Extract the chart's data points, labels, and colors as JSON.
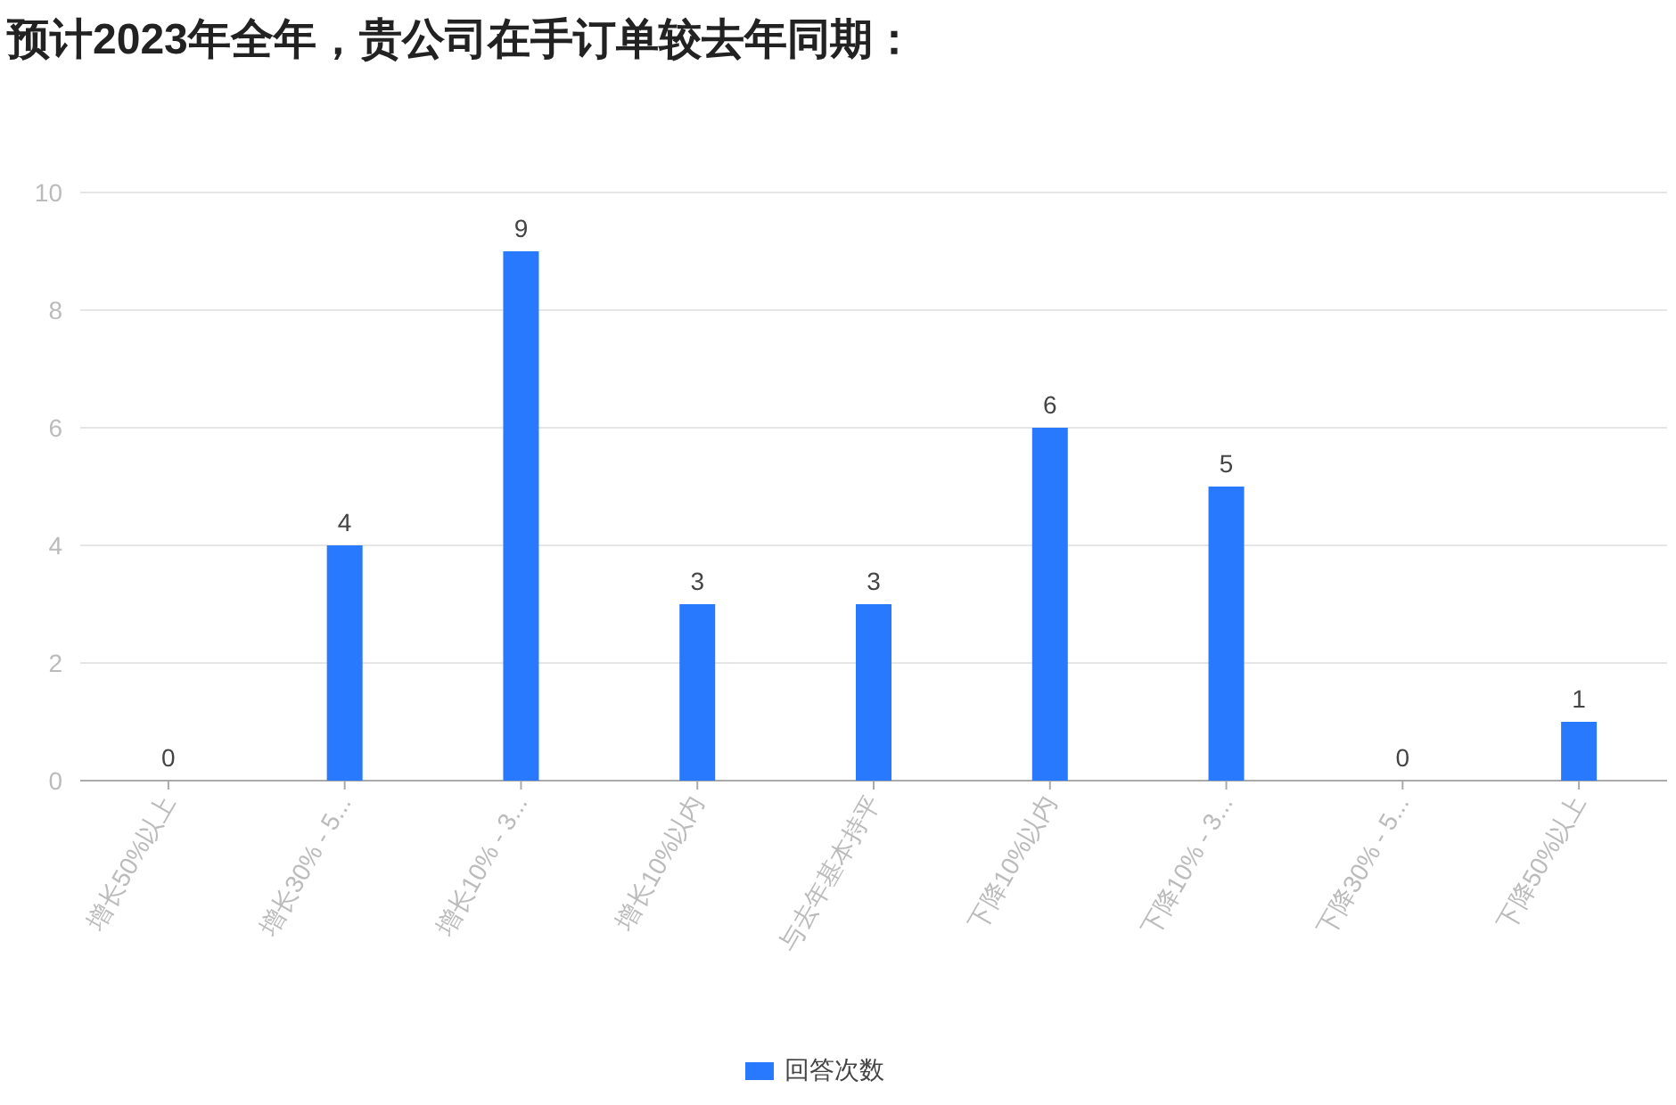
{
  "chart_data": {
    "type": "bar",
    "title": "预计2023年全年，贵公司在手订单较去年同期：",
    "categories": [
      "增长50%以上",
      "增长30% - 5...",
      "增长10% - 3...",
      "增长10%以内",
      "与去年基本持平",
      "下降10%以内",
      "下降10% - 3...",
      "下降30% - 5...",
      "下降50%以上"
    ],
    "series": [
      {
        "name": "回答次数",
        "color": "#2979ff",
        "values": [
          0,
          4,
          9,
          3,
          3,
          6,
          5,
          0,
          1
        ]
      }
    ],
    "ylim": [
      0,
      10
    ],
    "yticks": [
      0,
      2,
      4,
      6,
      8,
      10
    ],
    "grid": "y",
    "legend": "bottom",
    "data_labels": true
  }
}
